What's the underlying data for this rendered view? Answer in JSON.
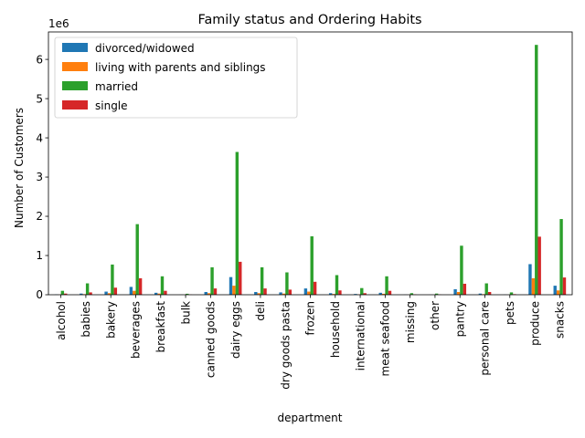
{
  "chart_data": {
    "type": "bar",
    "title": "Family status and Ordering Habits",
    "xlabel": "department",
    "ylabel": "Number of Customers",
    "offset_label": "1e6",
    "ylim": [
      0,
      6.7
    ],
    "yticks": [
      0,
      1,
      2,
      3,
      4,
      5,
      6
    ],
    "scale": 1000000,
    "grid": false,
    "legend_position": "top-left",
    "categories": [
      "alcohol",
      "babies",
      "bakery",
      "beverages",
      "breakfast",
      "bulk",
      "canned goods",
      "dairy eggs",
      "deli",
      "dry goods pasta",
      "frozen",
      "household",
      "international",
      "meat seafood",
      "missing",
      "other",
      "pantry",
      "personal care",
      "pets",
      "produce",
      "snacks"
    ],
    "series": [
      {
        "name": "divorced/widowed",
        "color": "#1f77b4",
        "values": [
          8000,
          30000,
          80000,
          200000,
          50000,
          3000,
          70000,
          450000,
          70000,
          60000,
          160000,
          40000,
          20000,
          50000,
          4000,
          2000,
          140000,
          30000,
          5000,
          780000,
          230000
        ]
      },
      {
        "name": "living with parents and siblings",
        "color": "#ff7f0e",
        "values": [
          4000,
          15000,
          40000,
          100000,
          30000,
          1000,
          40000,
          230000,
          40000,
          30000,
          80000,
          20000,
          10000,
          25000,
          2000,
          1000,
          70000,
          15000,
          2000,
          420000,
          110000
        ]
      },
      {
        "name": "married",
        "color": "#2ca02c",
        "values": [
          100000,
          290000,
          770000,
          1800000,
          470000,
          25000,
          700000,
          3640000,
          700000,
          570000,
          1490000,
          500000,
          170000,
          470000,
          40000,
          30000,
          1250000,
          290000,
          60000,
          6370000,
          1930000
        ]
      },
      {
        "name": "single",
        "color": "#d62728",
        "values": [
          30000,
          60000,
          180000,
          420000,
          100000,
          5000,
          160000,
          840000,
          160000,
          130000,
          330000,
          110000,
          40000,
          100000,
          10000,
          7000,
          280000,
          70000,
          15000,
          1480000,
          440000
        ]
      }
    ]
  }
}
